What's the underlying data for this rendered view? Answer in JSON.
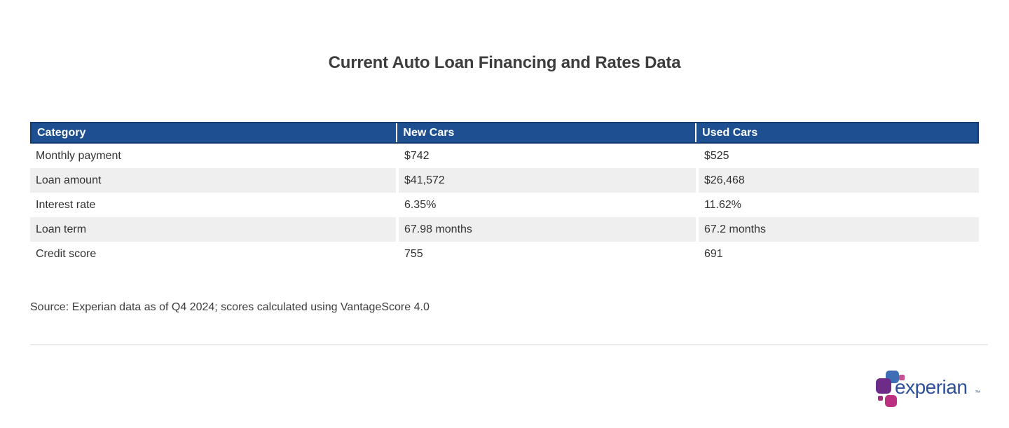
{
  "title": "Current Auto Loan Financing and Rates Data",
  "table": {
    "header_bg": "#1d4f91",
    "header_border": "#173c72",
    "header_text_color": "#ffffff",
    "stripe_bg": "#efefef",
    "body_text_color": "#333333",
    "columns": [
      "Category",
      "New Cars",
      "Used Cars"
    ],
    "rows": [
      {
        "cells": [
          "Monthly payment",
          "$742",
          "$525"
        ]
      },
      {
        "cells": [
          "Loan amount",
          "$41,572",
          "$26,468"
        ]
      },
      {
        "cells": [
          "Interest rate",
          "6.35%",
          "11.62%"
        ]
      },
      {
        "cells": [
          "Loan term",
          "67.98 months",
          "67.2 months"
        ]
      },
      {
        "cells": [
          "Credit score",
          "755",
          "691"
        ]
      }
    ]
  },
  "source_note": "Source: Experian data as of Q4 2024; scores calculated using VantageScore 4.0",
  "logo": {
    "text": "experian",
    "trademark": "™",
    "text_color": "#2d4f9c",
    "spot_colors": {
      "blue": "#3f6eb5",
      "pink_small": "#c94f93",
      "purple": "#6d2c87",
      "magenta_dot": "#a3307f",
      "magenta": "#bc3081"
    }
  },
  "chart_data": {
    "type": "table",
    "title": "Current Auto Loan Financing and Rates Data",
    "columns": [
      "Category",
      "New Cars",
      "Used Cars"
    ],
    "rows": [
      [
        "Monthly payment",
        "$742",
        "$525"
      ],
      [
        "Loan amount",
        "$41,572",
        "$26,468"
      ],
      [
        "Interest rate",
        "6.35%",
        "11.62%"
      ],
      [
        "Loan term",
        "67.98 months",
        "67.2 months"
      ],
      [
        "Credit score",
        "755",
        "691"
      ]
    ],
    "source": "Source: Experian data as of Q4 2024; scores calculated using VantageScore 4.0",
    "layout": {
      "header_bg": "#1d4f91",
      "row_striping": "alternate #efefef starting second data row",
      "grid": "off"
    }
  }
}
